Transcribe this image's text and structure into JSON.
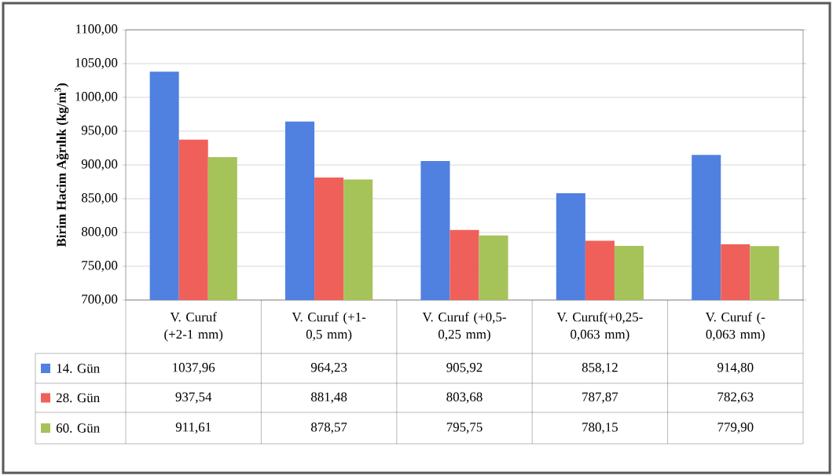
{
  "chart_data": {
    "type": "bar",
    "ylabel": "**Birim Hacim Ağrılık (kg/m$^{3}$)**",
    "categories": [
      "V. Curuf (+2-1 mm)",
      "V. Curuf (+1-0,5 mm)",
      "V. Curuf (+0,5-0,25 mm)",
      "V. Curuf(+0,25-0,063 mm)",
      "V. Curuf (-0,063 mm)"
    ],
    "series": [
      {
        "name": "14. Gün",
        "color": "#5080e0",
        "values": [
          1037.96,
          964.23,
          905.92,
          858.12,
          914.8
        ],
        "value_labels": [
          "1037,96",
          "964,23",
          "905,92",
          "858,12",
          "914,80"
        ]
      },
      {
        "name": "28. Gün",
        "color": "#f0605a",
        "values": [
          937.54,
          881.48,
          803.68,
          787.87,
          782.63
        ],
        "value_labels": [
          "937,54",
          "881,48",
          "803,68",
          "787,87",
          "782,63"
        ]
      },
      {
        "name": "60. Gün",
        "color": "#a6c35a",
        "values": [
          911.61,
          878.57,
          795.75,
          780.15,
          779.9
        ],
        "value_labels": [
          "911,61",
          "878,57",
          "795,75",
          "780,15",
          "779,90"
        ]
      }
    ],
    "ylim": [
      700,
      1100
    ],
    "yticks": [
      {
        "value": 700,
        "label": "700,00"
      },
      {
        "value": 750,
        "label": "750,00"
      },
      {
        "value": 800,
        "label": "800,00"
      },
      {
        "value": 850,
        "label": "850,00"
      },
      {
        "value": 900,
        "label": "900,00"
      },
      {
        "value": 950,
        "label": "950,00"
      },
      {
        "value": 1000,
        "label": "1000,00"
      },
      {
        "value": 1050,
        "label": "1050,00"
      },
      {
        "value": 1100,
        "label": "1100,00"
      }
    ],
    "grid": "y",
    "legend": "bottom left"
  }
}
